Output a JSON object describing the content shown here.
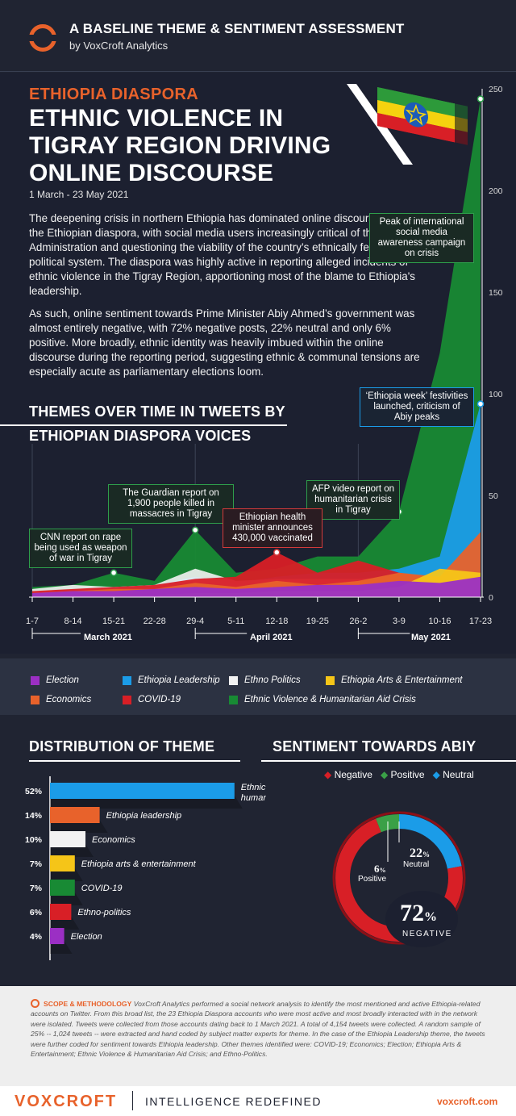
{
  "header": {
    "title": "A BASELINE THEME & SENTIMENT ASSESSMENT",
    "subtitle": "by VoxCroft Analytics"
  },
  "hero": {
    "kicker": "ETHIOPIA DIASPORA",
    "headline": "ETHNIC VIOLENCE IN TIGRAY REGION DRIVING ONLINE DISCOURSE",
    "dates": "1 March - 23 May 2021",
    "paragraph1": "The deepening crisis in northern Ethiopia has dominated online discourse among the Ethiopian diaspora, with social media users increasingly critical of the Abiy Administration and questioning the viability of the country’s ethnically federated political system. The diaspora was highly active in reporting alleged incidents of ethnic violence in the Tigray Region, apportioning most of the blame to Ethiopia's leadership.",
    "paragraph2": "As such, online sentiment towards Prime Minister Abiy Ahmed’s government was almost entirely negative, with 72% negative posts, 22% neutral and only 6% positive. More broadly, ethnic identity was heavily imbued within the online discourse during the reporting period, suggesting ethnic & communal tensions are especially acute as parliamentary elections loom."
  },
  "themes_chart": {
    "title_line1": "THEMES OVER TIME IN TWEETS BY",
    "title_line2": "ETHIOPIAN DIASPORA VOICES",
    "months": [
      "March 2021",
      "April 2021",
      "May 2021"
    ],
    "annotations": {
      "cnn": "CNN report on rape being used as weapon of war in Tigray",
      "guardian": "The Guardian report on 1,900 people killed in massacres in Tigray",
      "health": "Ethiopian health minister announces 430,000 vaccinated",
      "afp": "AFP video report on humanitarian crisis in Tigray",
      "week": "‘Ethiopia week’ festivities launched, criticism of Abiy peaks",
      "peak": "Peak of international social media awareness campaign on crisis"
    }
  },
  "chart_data": {
    "type": "area",
    "x": [
      "1-7",
      "8-14",
      "15-21",
      "22-28",
      "29-4",
      "5-11",
      "12-18",
      "19-25",
      "26-2",
      "3-9",
      "10-16",
      "17-23"
    ],
    "ylim": [
      0,
      250
    ],
    "yticks": [
      "0",
      "50",
      "100",
      "150",
      "200",
      "250"
    ],
    "grid": true,
    "series": [
      {
        "name": "Election",
        "color": "#9b2fc4",
        "values": [
          2,
          3,
          3,
          4,
          5,
          4,
          5,
          6,
          6,
          8,
          7,
          10
        ]
      },
      {
        "name": "Economics",
        "color": "#e8622b",
        "values": [
          2,
          3,
          4,
          4,
          7,
          5,
          8,
          6,
          8,
          12,
          10,
          32
        ]
      },
      {
        "name": "Ethiopia Leadership",
        "color": "#1b9ce8",
        "values": [
          3,
          4,
          5,
          6,
          10,
          7,
          10,
          12,
          12,
          14,
          20,
          95
        ]
      },
      {
        "name": "Ethno Politics",
        "color": "#f2f2f2",
        "values": [
          4,
          6,
          5,
          6,
          14,
          8,
          9,
          9,
          9,
          10,
          8,
          12
        ]
      },
      {
        "name": "Ethiopia Arts & Entertainment",
        "color": "#f5c518",
        "values": [
          1,
          1,
          1,
          1,
          2,
          2,
          3,
          3,
          3,
          5,
          14,
          12
        ]
      },
      {
        "name": "COVID-19",
        "color": "#d81f26",
        "values": [
          3,
          4,
          5,
          6,
          9,
          10,
          22,
          12,
          18,
          12,
          9,
          8
        ]
      },
      {
        "name": "Ethnic Violence & Humanitarian Aid Crisis",
        "color": "#188a34",
        "values": [
          5,
          6,
          12,
          8,
          33,
          12,
          14,
          20,
          20,
          42,
          120,
          245
        ]
      }
    ]
  },
  "legend": [
    {
      "label": "Election",
      "color": "#9b2fc4"
    },
    {
      "label": "Ethiopia Leadership",
      "color": "#1b9ce8"
    },
    {
      "label": "Ethno Politics",
      "color": "#f2f2f2"
    },
    {
      "label": "Ethiopia Arts & Entertainment",
      "color": "#f5c518"
    },
    {
      "label": "Economics",
      "color": "#e8622b"
    },
    {
      "label": "COVID-19",
      "color": "#d81f26"
    },
    {
      "label": "Ethnic Violence & Humanitarian Aid Crisis",
      "color": "#188a34"
    }
  ],
  "distribution": {
    "title": "DISTRIBUTION OF THEME",
    "items": [
      {
        "pct": "52%",
        "value": 52,
        "label_line1": "Ethnic violence &",
        "label_line2": "humanitarian aid crisis",
        "color": "#1b9ce8"
      },
      {
        "pct": "14%",
        "value": 14,
        "label_line1": "Ethiopia leadership",
        "label_line2": "",
        "color": "#e8622b"
      },
      {
        "pct": "10%",
        "value": 10,
        "label_line1": "Economics",
        "label_line2": "",
        "color": "#f2f2f2"
      },
      {
        "pct": "7%",
        "value": 7,
        "label_line1": "Ethiopia arts & entertainment",
        "label_line2": "",
        "color": "#f5c518"
      },
      {
        "pct": "7%",
        "value": 7,
        "label_line1": "COVID-19",
        "label_line2": "",
        "color": "#188a34"
      },
      {
        "pct": "6%",
        "value": 6,
        "label_line1": "Ethno-politics",
        "label_line2": "",
        "color": "#d81f26"
      },
      {
        "pct": "4%",
        "value": 4,
        "label_line1": "Election",
        "label_line2": "",
        "color": "#9b2fc4"
      }
    ]
  },
  "sentiment": {
    "title": "SENTIMENT TOWARDS ABIY",
    "legend_negative": "Negative",
    "legend_positive": "Positive",
    "legend_neutral": "Neutral",
    "negative_pct": "72",
    "negative_sign": "%",
    "negative_label": "NEGATIVE",
    "neutral_pct": "22",
    "neutral_sign": "%",
    "neutral_label": "Neutral",
    "positive_pct": "6",
    "positive_sign": "%",
    "positive_label": "Positive",
    "negative_value": 72,
    "neutral_value": 22,
    "positive_value": 6,
    "colors": {
      "negative": "#d81f26",
      "positive": "#3aa047",
      "neutral": "#1b9ce8"
    }
  },
  "methodology": {
    "heading": "SCOPE & METHODOLOGY",
    "text": "VoxCroft Analytics performed a social network analysis to identify the most mentioned and active Ethiopia-related accounts on Twitter. From this broad list, the 23 Ethiopia Diaspora accounts who were most active and most broadly interacted with in the network were isolated. Tweets were collected from those accounts dating back to 1 March 2021. A total of 4,154 tweets were collected. A random sample of 25% -- 1,024 tweets -- were extracted and hand coded by subject matter experts for theme. In the case of the Ethiopia Leadership theme, the tweets were further coded for sentiment towards Ethiopia leadership. Other themes identified were: COVID-19; Economics; Election; Ethiopia Arts & Entertainment; Ethnic Violence & Humanitarian Aid Crisis; and Ethno-Politics."
  },
  "footer": {
    "brand": "VOXCROFT",
    "tagline": "INTELLIGENCE REDEFINED",
    "url": "voxcroft.com"
  },
  "colors": {
    "accent": "#e8622b",
    "background": "#202432"
  }
}
